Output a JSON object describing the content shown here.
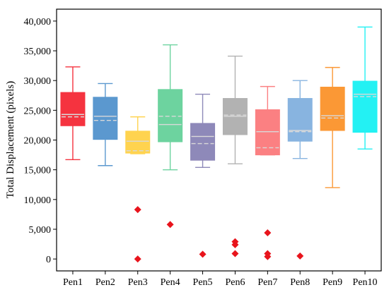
{
  "chart_data": {
    "type": "box",
    "title": "",
    "xlabel": "",
    "ylabel": "Total Displacement (pixels)",
    "ylim": [
      -2000,
      42000
    ],
    "yticks": [
      0,
      5000,
      10000,
      15000,
      20000,
      25000,
      30000,
      35000,
      40000
    ],
    "ytick_labels": [
      "0",
      "5,000",
      "10,000",
      "15,000",
      "20,000",
      "25,000",
      "30,000",
      "35,000",
      "40,000"
    ],
    "grid": false,
    "legend": "none",
    "outlier_color": "#e8141c",
    "median_color": "#d9d9d9",
    "categories": [
      "Pen1",
      "Pen2",
      "Pen3",
      "Pen4",
      "Pen5",
      "Pen6",
      "Pen7",
      "Pen8",
      "Pen9",
      "Pen10"
    ],
    "boxes": [
      {
        "color": "#f5333f",
        "whisker_low": 16700,
        "q1": 22400,
        "median": 24300,
        "mean": 23900,
        "q3": 28000,
        "whisker_high": 32300,
        "outliers": []
      },
      {
        "color": "#5b98cf",
        "whisker_low": 15700,
        "q1": 20100,
        "median": 24000,
        "mean": 23300,
        "q3": 27200,
        "whisker_high": 29500,
        "outliers": []
      },
      {
        "color": "#ffd34f",
        "whisker_low": 17700,
        "q1": 17800,
        "median": 19800,
        "mean": 18200,
        "q3": 21500,
        "whisker_high": 23900,
        "outliers": [
          8300,
          0
        ]
      },
      {
        "color": "#6dd39f",
        "whisker_low": 15000,
        "q1": 19700,
        "median": 22600,
        "mean": 24000,
        "q3": 28500,
        "whisker_high": 36000,
        "outliers": [
          5800
        ]
      },
      {
        "color": "#8e89b9",
        "whisker_low": 15400,
        "q1": 16600,
        "median": 20600,
        "mean": 19400,
        "q3": 22800,
        "whisker_high": 27700,
        "outliers": [
          800
        ]
      },
      {
        "color": "#b2b2b2",
        "whisker_low": 16000,
        "q1": 20900,
        "median": 24000,
        "mean": 24200,
        "q3": 27000,
        "whisker_high": 34100,
        "outliers": [
          2900,
          2400,
          900
        ]
      },
      {
        "color": "#fb8082",
        "whisker_low": 17500,
        "q1": 17500,
        "median": 21400,
        "mean": 18700,
        "q3": 25100,
        "whisker_high": 29000,
        "outliers": [
          4400,
          900,
          400
        ]
      },
      {
        "color": "#88b4e0",
        "whisker_low": 16900,
        "q1": 19800,
        "median": 21600,
        "mean": 21400,
        "q3": 27000,
        "whisker_high": 30000,
        "outliers": [
          500
        ]
      },
      {
        "color": "#fb9835",
        "whisker_low": 12000,
        "q1": 21600,
        "median": 24100,
        "mean": 23700,
        "q3": 28900,
        "whisker_high": 32200,
        "outliers": []
      },
      {
        "color": "#23f1f3",
        "whisker_low": 18500,
        "q1": 21300,
        "median": 27700,
        "mean": 27300,
        "q3": 29900,
        "whisker_high": 39000,
        "outliers": []
      }
    ]
  }
}
